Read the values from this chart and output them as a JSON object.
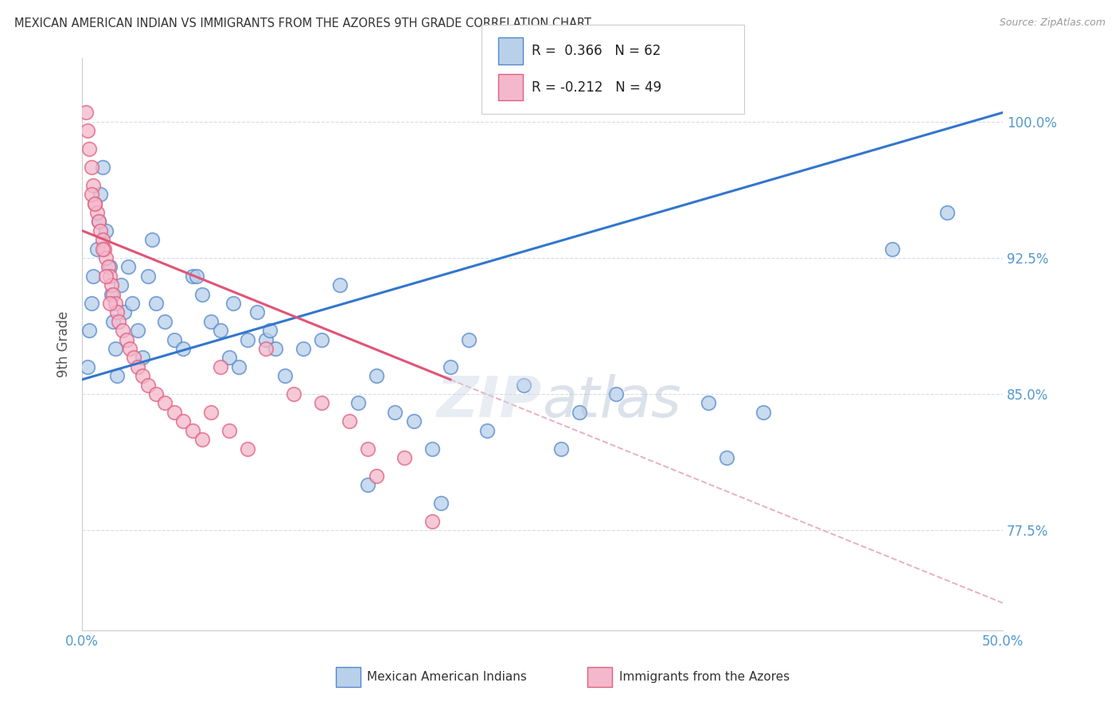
{
  "title": "MEXICAN AMERICAN INDIAN VS IMMIGRANTS FROM THE AZORES 9TH GRADE CORRELATION CHART",
  "source": "Source: ZipAtlas.com",
  "ylabel": "9th Grade",
  "xlim": [
    0.0,
    50.0
  ],
  "ylim": [
    72.0,
    103.5
  ],
  "x_ticks": [
    0.0,
    10.0,
    20.0,
    30.0,
    40.0,
    50.0
  ],
  "x_tick_labels": [
    "0.0%",
    "",
    "",
    "",
    "",
    "50.0%"
  ],
  "y_ticks": [
    77.5,
    85.0,
    92.5,
    100.0
  ],
  "y_tick_labels": [
    "77.5%",
    "85.0%",
    "92.5%",
    "100.0%"
  ],
  "blue_R": 0.366,
  "blue_N": 62,
  "pink_R": -0.212,
  "pink_N": 49,
  "blue_dot_color": "#b8d0ea",
  "blue_dot_edge": "#5588cc",
  "pink_dot_color": "#f4b8cc",
  "pink_dot_edge": "#e06080",
  "blue_line_color": "#3377cc",
  "pink_line_color": "#e05577",
  "dashed_line_color": "#e8b0c0",
  "legend_label_blue": "Mexican American Indians",
  "legend_label_pink": "Immigrants from the Azores",
  "background_color": "#ffffff",
  "grid_color": "#d8dce8",
  "title_color": "#333333",
  "axis_tick_color": "#5599cc",
  "blue_line_x0": 0.0,
  "blue_line_y0": 85.8,
  "blue_line_x1": 50.0,
  "blue_line_y1": 100.5,
  "pink_line_x0": 0.0,
  "pink_line_y0": 94.0,
  "pink_line_x1": 50.0,
  "pink_line_y1": 73.5,
  "pink_solid_end_x": 20.0,
  "blue_scatter_x": [
    0.3,
    0.4,
    0.5,
    0.6,
    0.8,
    0.9,
    1.0,
    1.1,
    1.3,
    1.5,
    1.6,
    1.7,
    1.8,
    1.9,
    2.1,
    2.3,
    2.5,
    2.7,
    3.0,
    3.3,
    3.6,
    4.0,
    4.5,
    5.0,
    5.5,
    6.0,
    6.5,
    7.0,
    7.5,
    8.0,
    8.5,
    9.0,
    9.5,
    10.0,
    10.5,
    11.0,
    12.0,
    13.0,
    14.0,
    15.0,
    16.0,
    17.0,
    18.0,
    19.0,
    20.0,
    21.0,
    22.0,
    24.0,
    26.0,
    27.0,
    29.0,
    34.0,
    35.0,
    37.0,
    44.0,
    47.0,
    3.8,
    6.2,
    8.2,
    10.2,
    15.5,
    19.5
  ],
  "blue_scatter_y": [
    86.5,
    88.5,
    90.0,
    91.5,
    93.0,
    94.5,
    96.0,
    97.5,
    94.0,
    92.0,
    90.5,
    89.0,
    87.5,
    86.0,
    91.0,
    89.5,
    92.0,
    90.0,
    88.5,
    87.0,
    91.5,
    90.0,
    89.0,
    88.0,
    87.5,
    91.5,
    90.5,
    89.0,
    88.5,
    87.0,
    86.5,
    88.0,
    89.5,
    88.0,
    87.5,
    86.0,
    87.5,
    88.0,
    91.0,
    84.5,
    86.0,
    84.0,
    83.5,
    82.0,
    86.5,
    88.0,
    83.0,
    85.5,
    82.0,
    84.0,
    85.0,
    84.5,
    81.5,
    84.0,
    93.0,
    95.0,
    93.5,
    91.5,
    90.0,
    88.5,
    80.0,
    79.0
  ],
  "pink_scatter_x": [
    0.2,
    0.3,
    0.4,
    0.5,
    0.6,
    0.7,
    0.8,
    0.9,
    1.0,
    1.1,
    1.2,
    1.3,
    1.4,
    1.5,
    1.6,
    1.7,
    1.8,
    1.9,
    2.0,
    2.2,
    2.4,
    2.6,
    2.8,
    3.0,
    3.3,
    3.6,
    4.0,
    4.5,
    5.0,
    5.5,
    6.0,
    6.5,
    7.0,
    7.5,
    8.0,
    9.0,
    10.0,
    11.5,
    13.0,
    14.5,
    15.5,
    16.0,
    17.5,
    19.0,
    0.5,
    0.7,
    1.1,
    1.3,
    1.5
  ],
  "pink_scatter_y": [
    100.5,
    99.5,
    98.5,
    97.5,
    96.5,
    95.5,
    95.0,
    94.5,
    94.0,
    93.5,
    93.0,
    92.5,
    92.0,
    91.5,
    91.0,
    90.5,
    90.0,
    89.5,
    89.0,
    88.5,
    88.0,
    87.5,
    87.0,
    86.5,
    86.0,
    85.5,
    85.0,
    84.5,
    84.0,
    83.5,
    83.0,
    82.5,
    84.0,
    86.5,
    83.0,
    82.0,
    87.5,
    85.0,
    84.5,
    83.5,
    82.0,
    80.5,
    81.5,
    78.0,
    96.0,
    95.5,
    93.0,
    91.5,
    90.0
  ]
}
